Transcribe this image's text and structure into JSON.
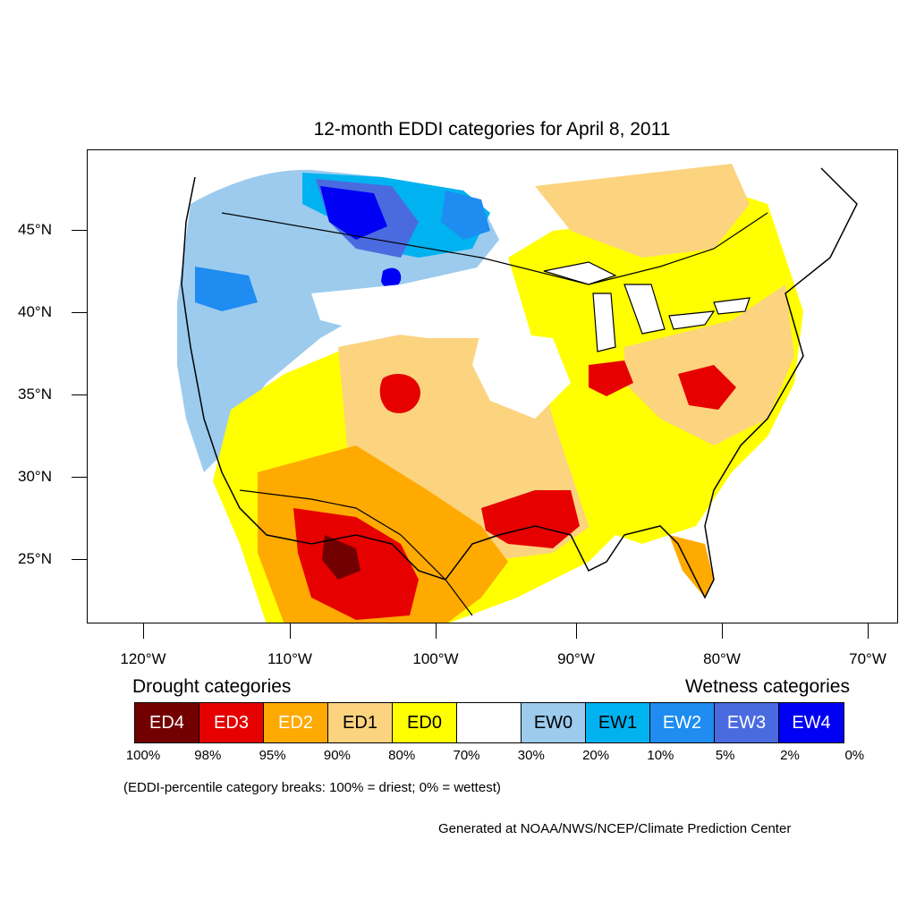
{
  "title": "12-month EDDI categories for April 8, 2011",
  "lat_labels": [
    "45°N",
    "40°N",
    "35°N",
    "30°N",
    "25°N"
  ],
  "lon_labels": [
    "120°W",
    "110°W",
    "100°W",
    "90°W",
    "80°W",
    "70°W"
  ],
  "legend": {
    "drought_heading": "Drought categories",
    "wetness_heading": "Wetness categories",
    "categories": [
      {
        "label": "ED4",
        "color": "#730000",
        "text_color": "#ffffff"
      },
      {
        "label": "ED3",
        "color": "#e60000",
        "text_color": "#ffffff"
      },
      {
        "label": "ED2",
        "color": "#ffaa00",
        "text_color": "#ffffff"
      },
      {
        "label": "ED1",
        "color": "#fcd37f",
        "text_color": "#000000"
      },
      {
        "label": "ED0",
        "color": "#ffff00",
        "text_color": "#000000"
      },
      {
        "label": "",
        "color": "#ffffff",
        "text_color": "#000000"
      },
      {
        "label": "EW0",
        "color": "#9ccbee",
        "text_color": "#000000"
      },
      {
        "label": "EW1",
        "color": "#00b3f0",
        "text_color": "#000000"
      },
      {
        "label": "EW2",
        "color": "#1e8cf0",
        "text_color": "#ffffff"
      },
      {
        "label": "EW3",
        "color": "#4a6be0",
        "text_color": "#ffffff"
      },
      {
        "label": "EW4",
        "color": "#0000f5",
        "text_color": "#ffffff"
      }
    ],
    "percent_breaks": [
      "100%",
      "98%",
      "95%",
      "90%",
      "80%",
      "70%",
      "30%",
      "20%",
      "10%",
      "5%",
      "2%",
      "0%"
    ]
  },
  "note": "(EDDI-percentile category breaks: 100% = driest; 0% = wettest)",
  "credit": "Generated at NOAA/NWS/NCEP/Climate Prediction Center"
}
